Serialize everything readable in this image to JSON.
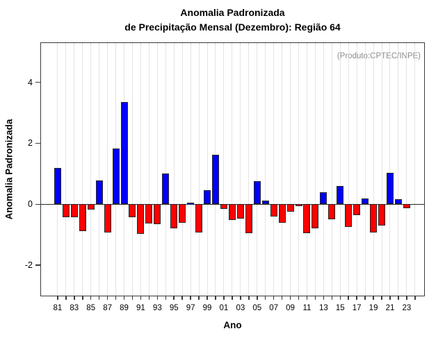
{
  "title": {
    "line1": "Anomalia Padronizada",
    "line2": "de Precipitação Mensal (Dezembro): Região 64"
  },
  "annotation": "(Produto:CPTEC/INPE)",
  "chart_data": {
    "type": "bar",
    "title": "Anomalia Padronizada de Precipitação Mensal (Dezembro): Região 64",
    "xlabel": "Ano",
    "ylabel": "Anomalia Padronizada",
    "annotation": "(Produto:CPTEC/INPE)",
    "years": [
      1981,
      1982,
      1983,
      1984,
      1985,
      1986,
      1987,
      1988,
      1989,
      1990,
      1991,
      1992,
      1993,
      1994,
      1995,
      1996,
      1997,
      1998,
      1999,
      2000,
      2001,
      2002,
      2003,
      2004,
      2005,
      2006,
      2007,
      2008,
      2009,
      2010,
      2011,
      2012,
      2013,
      2014,
      2015,
      2016,
      2017,
      2018,
      2019,
      2020,
      2021,
      2022,
      2023
    ],
    "values": [
      1.18,
      -0.43,
      -0.42,
      -0.88,
      -0.18,
      0.78,
      -0.93,
      1.82,
      3.35,
      -0.42,
      -0.98,
      -0.63,
      -0.66,
      1.01,
      -0.8,
      -0.61,
      0.06,
      -0.93,
      0.47,
      1.62,
      -0.15,
      -0.51,
      -0.47,
      -0.95,
      0.76,
      0.12,
      -0.41,
      -0.62,
      -0.24,
      -0.05,
      -0.94,
      -0.8,
      0.4,
      -0.49,
      0.59,
      -0.74,
      -0.36,
      0.19,
      -0.92,
      -0.7,
      1.03,
      0.16,
      -0.13
    ],
    "x_tick_years": [
      1981,
      1983,
      1985,
      1987,
      1989,
      1991,
      1993,
      1995,
      1997,
      1999,
      2001,
      2003,
      2005,
      2007,
      2009,
      2011,
      2013,
      2015,
      2017,
      2019,
      2021,
      2023
    ],
    "x_tick_labels": [
      "81",
      "83",
      "85",
      "87",
      "89",
      "91",
      "93",
      "95",
      "97",
      "99",
      "01",
      "03",
      "05",
      "07",
      "09",
      "11",
      "13",
      "15",
      "17",
      "19",
      "21",
      "23"
    ],
    "y_ticks": [
      -2,
      0,
      2,
      4
    ],
    "y_tick_labels": [
      "-2",
      "0",
      "2",
      "4"
    ],
    "ylim": [
      -3.0,
      5.29
    ],
    "xlim": [
      1979.0,
      2025.1
    ],
    "gridlines": {
      "orientation": "vertical",
      "style": "dotted",
      "every_year_from": 1981,
      "every_year_to": 2024
    },
    "legend": "none",
    "colors": {
      "positive": "#0000ff",
      "negative": "#ff0000",
      "bar_border": "#262626",
      "grid": "#c9c9c9",
      "axis": "#3a3a3a",
      "zero_line": "#2a2a2a",
      "annotation_text": "#8c8c8c",
      "text": "#000000"
    }
  }
}
